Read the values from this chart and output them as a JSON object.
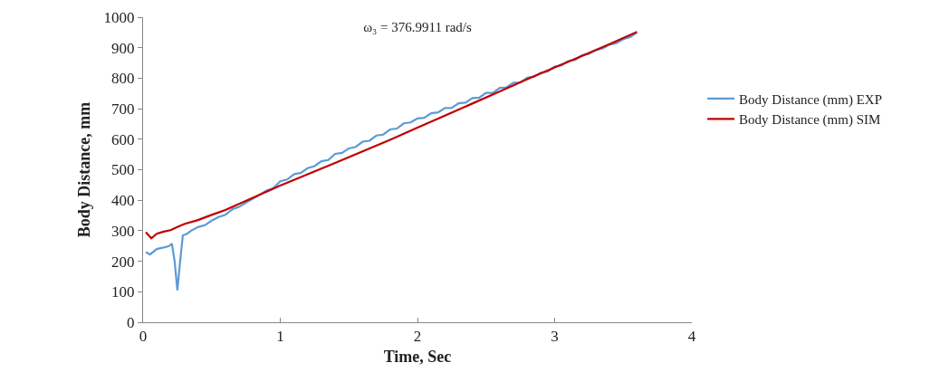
{
  "chart_data": {
    "type": "line",
    "title": "ω₃ = 376.9911 rad/s",
    "xlabel": "Time, Sec",
    "ylabel": "Body Distance, mm",
    "xlim": [
      0,
      4
    ],
    "xticks": [
      0,
      1,
      2,
      3,
      4
    ],
    "ylim": [
      0,
      1000
    ],
    "yticks": [
      0,
      100,
      200,
      300,
      400,
      500,
      600,
      700,
      800,
      900,
      1000
    ],
    "grid": false,
    "legend": "right",
    "marker": "none",
    "line_style": "solid",
    "series": [
      {
        "name": "Body Distance (mm) EXP",
        "color": "#5b9bd5",
        "x": [
          0.02,
          0.05,
          0.1,
          0.15,
          0.19,
          0.21,
          0.23,
          0.25,
          0.27,
          0.29,
          0.32,
          0.35,
          0.4,
          0.45,
          0.5,
          0.55,
          0.6,
          0.65,
          0.7,
          0.75,
          0.8,
          0.85,
          0.9,
          0.95,
          1.0,
          1.05,
          1.1,
          1.15,
          1.2,
          1.25,
          1.3,
          1.35,
          1.4,
          1.45,
          1.5,
          1.55,
          1.6,
          1.65,
          1.7,
          1.75,
          1.8,
          1.85,
          1.9,
          1.95,
          2.0,
          2.05,
          2.1,
          2.15,
          2.2,
          2.25,
          2.3,
          2.35,
          2.4,
          2.45,
          2.5,
          2.55,
          2.6,
          2.65,
          2.7,
          2.75,
          2.8,
          2.85,
          2.9,
          2.95,
          3.0,
          3.05,
          3.1,
          3.15,
          3.2,
          3.25,
          3.3,
          3.35,
          3.4,
          3.45,
          3.5,
          3.55,
          3.6
        ],
        "values": [
          230,
          222,
          240,
          245,
          250,
          258,
          200,
          105,
          200,
          285,
          290,
          300,
          312,
          318,
          333,
          345,
          352,
          370,
          378,
          392,
          405,
          418,
          432,
          440,
          462,
          468,
          485,
          490,
          505,
          512,
          528,
          532,
          552,
          555,
          570,
          575,
          592,
          595,
          612,
          615,
          632,
          635,
          652,
          655,
          668,
          670,
          685,
          688,
          702,
          703,
          718,
          720,
          735,
          736,
          752,
          752,
          768,
          770,
          785,
          786,
          802,
          805,
          818,
          822,
          838,
          842,
          856,
          860,
          875,
          880,
          892,
          898,
          910,
          915,
          928,
          935,
          950
        ]
      },
      {
        "name": "Body Distance (mm) SIM",
        "color": "#c00000",
        "x": [
          0.02,
          0.06,
          0.1,
          0.15,
          0.2,
          0.25,
          0.3,
          0.4,
          0.5,
          0.6,
          0.7,
          0.8,
          0.9,
          1.0,
          1.2,
          1.4,
          1.6,
          1.8,
          2.0,
          2.2,
          2.4,
          2.6,
          2.8,
          3.0,
          3.2,
          3.4,
          3.6
        ],
        "values": [
          295,
          275,
          290,
          297,
          302,
          312,
          322,
          335,
          352,
          368,
          388,
          408,
          428,
          448,
          485,
          522,
          560,
          598,
          638,
          677,
          717,
          757,
          797,
          835,
          873,
          912,
          952
        ]
      }
    ]
  }
}
